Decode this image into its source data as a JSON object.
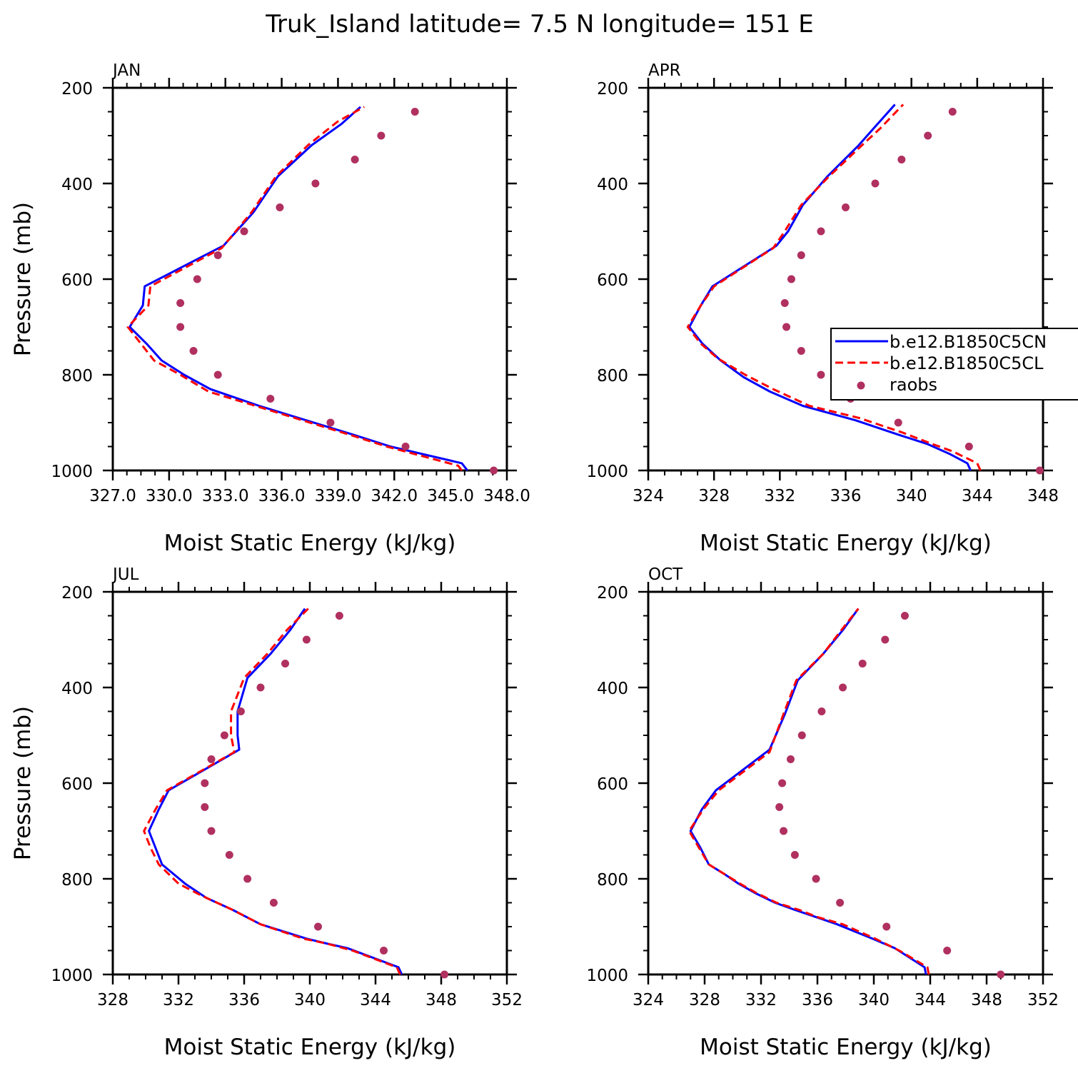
{
  "title": "Truk_Island  latitude= 7.5 N longitude= 151 E",
  "colors": {
    "model1": "#0000ff",
    "model2": "#ff0000",
    "raobs": "#b03060"
  },
  "legend": {
    "series": [
      {
        "name": "b.e12.B1850C5CN",
        "style": "solid"
      },
      {
        "name": "b.e12.B1850C5CL",
        "style": "dashed"
      },
      {
        "name": "raobs",
        "style": "dots"
      }
    ]
  },
  "chart_data": [
    {
      "type": "line",
      "panel_label": "JAN",
      "xlabel": "Moist Static Energy (kJ/kg)",
      "ylabel": "Pressure (mb)",
      "xlim": [
        327.0,
        348.0
      ],
      "ylim": [
        1000,
        200
      ],
      "xticks": [
        "327.0",
        "330.0",
        "333.0",
        "336.0",
        "339.0",
        "342.0",
        "345.0",
        "348.0"
      ],
      "yticks": [
        "200",
        "400",
        "600",
        "800",
        "1000"
      ],
      "series": [
        {
          "name": "b.e12.B1850C5CN",
          "points": [
            [
              345.9,
              1000
            ],
            [
              345.6,
              985
            ],
            [
              341.8,
              950
            ],
            [
              339.8,
              925
            ],
            [
              337.3,
              895
            ],
            [
              334.8,
              865
            ],
            [
              332.2,
              830
            ],
            [
              330.8,
              800
            ],
            [
              329.6,
              770
            ],
            [
              328.8,
              735
            ],
            [
              327.9,
              700
            ],
            [
              328.6,
              655
            ],
            [
              328.7,
              615
            ],
            [
              332.9,
              530
            ],
            [
              334.5,
              460
            ],
            [
              335.8,
              385
            ],
            [
              337.6,
              320
            ],
            [
              339.2,
              275
            ],
            [
              340.2,
              240
            ]
          ]
        },
        {
          "name": "b.e12.B1850C5CL",
          "points": [
            [
              345.6,
              1000
            ],
            [
              345.4,
              990
            ],
            [
              341.6,
              950
            ],
            [
              339.6,
              925
            ],
            [
              337.1,
              895
            ],
            [
              334.6,
              865
            ],
            [
              332.1,
              835
            ],
            [
              330.6,
              800
            ],
            [
              329.2,
              770
            ],
            [
              328.5,
              735
            ],
            [
              327.8,
              700
            ],
            [
              328.9,
              655
            ],
            [
              329.0,
              615
            ],
            [
              332.8,
              535
            ],
            [
              334.4,
              460
            ],
            [
              335.7,
              385
            ],
            [
              337.4,
              320
            ],
            [
              339.0,
              270
            ],
            [
              340.4,
              240
            ]
          ]
        },
        {
          "name": "raobs",
          "points": [
            [
              347.3,
              1000
            ],
            [
              342.6,
              950
            ],
            [
              338.6,
              900
            ],
            [
              335.4,
              850
            ],
            [
              332.6,
              800
            ],
            [
              331.3,
              750
            ],
            [
              330.6,
              700
            ],
            [
              330.6,
              650
            ],
            [
              331.5,
              600
            ],
            [
              332.6,
              550
            ],
            [
              334.0,
              500
            ],
            [
              335.9,
              450
            ],
            [
              337.8,
              400
            ],
            [
              339.9,
              350
            ],
            [
              341.3,
              300
            ],
            [
              343.1,
              250
            ]
          ]
        }
      ]
    },
    {
      "type": "line",
      "panel_label": "APR",
      "xlabel": "Moist Static Energy (kJ/kg)",
      "ylabel": "",
      "xlim": [
        324,
        348
      ],
      "ylim": [
        1000,
        200
      ],
      "xticks": [
        "324",
        "328",
        "332",
        "336",
        "340",
        "344",
        "348"
      ],
      "yticks": [
        "200",
        "400",
        "600",
        "800",
        "1000"
      ],
      "series": [
        {
          "name": "b.e12.B1850C5CN",
          "points": [
            [
              343.6,
              1000
            ],
            [
              343.4,
              985
            ],
            [
              342.3,
              965
            ],
            [
              341.0,
              945
            ],
            [
              339.2,
              925
            ],
            [
              336.6,
              895
            ],
            [
              333.4,
              865
            ],
            [
              331.4,
              835
            ],
            [
              329.8,
              805
            ],
            [
              328.4,
              770
            ],
            [
              327.3,
              735
            ],
            [
              326.5,
              700
            ],
            [
              327.2,
              655
            ],
            [
              327.9,
              615
            ],
            [
              331.8,
              530
            ],
            [
              332.5,
              500
            ],
            [
              333.4,
              445
            ],
            [
              334.9,
              385
            ],
            [
              336.8,
              320
            ],
            [
              337.7,
              285
            ],
            [
              339.0,
              235
            ]
          ]
        },
        {
          "name": "b.e12.B1850C5CL",
          "points": [
            [
              344.2,
              1000
            ],
            [
              344.0,
              985
            ],
            [
              342.5,
              960
            ],
            [
              341.3,
              945
            ],
            [
              339.4,
              920
            ],
            [
              336.8,
              890
            ],
            [
              333.8,
              865
            ],
            [
              331.6,
              830
            ],
            [
              329.9,
              800
            ],
            [
              328.2,
              765
            ],
            [
              327.2,
              735
            ],
            [
              326.4,
              700
            ],
            [
              327.2,
              655
            ],
            [
              328.0,
              615
            ],
            [
              331.6,
              535
            ],
            [
              332.3,
              500
            ],
            [
              333.3,
              445
            ],
            [
              335.0,
              385
            ],
            [
              337.0,
              320
            ],
            [
              338.1,
              285
            ],
            [
              339.5,
              235
            ]
          ]
        },
        {
          "name": "raobs",
          "points": [
            [
              347.8,
              1000
            ],
            [
              343.5,
              950
            ],
            [
              339.2,
              900
            ],
            [
              336.3,
              850
            ],
            [
              334.5,
              800
            ],
            [
              333.3,
              750
            ],
            [
              332.4,
              700
            ],
            [
              332.3,
              650
            ],
            [
              332.7,
              600
            ],
            [
              333.3,
              550
            ],
            [
              334.5,
              500
            ],
            [
              336.0,
              450
            ],
            [
              337.8,
              400
            ],
            [
              339.4,
              350
            ],
            [
              341.0,
              300
            ],
            [
              342.5,
              250
            ]
          ]
        }
      ]
    },
    {
      "type": "line",
      "panel_label": "JUL",
      "xlabel": "Moist Static Energy (kJ/kg)",
      "ylabel": "Pressure (mb)",
      "xlim": [
        328,
        352
      ],
      "ylim": [
        1000,
        200
      ],
      "xticks": [
        "328",
        "332",
        "336",
        "340",
        "344",
        "348",
        "352"
      ],
      "yticks": [
        "200",
        "400",
        "600",
        "800",
        "1000"
      ],
      "series": [
        {
          "name": "b.e12.B1850C5CN",
          "points": [
            [
              345.6,
              1000
            ],
            [
              345.4,
              985
            ],
            [
              342.3,
              945
            ],
            [
              341.0,
              935
            ],
            [
              339.8,
              925
            ],
            [
              337.0,
              895
            ],
            [
              335.3,
              865
            ],
            [
              333.7,
              840
            ],
            [
              332.4,
              810
            ],
            [
              331.0,
              770
            ],
            [
              330.6,
              735
            ],
            [
              330.2,
              700
            ],
            [
              330.8,
              655
            ],
            [
              331.4,
              615
            ],
            [
              335.7,
              530
            ],
            [
              335.6,
              500
            ],
            [
              335.6,
              450
            ],
            [
              336.2,
              380
            ],
            [
              337.6,
              330
            ],
            [
              338.8,
              280
            ],
            [
              339.7,
              235
            ]
          ]
        },
        {
          "name": "b.e12.B1850C5CL",
          "points": [
            [
              345.5,
              1000
            ],
            [
              345.3,
              985
            ],
            [
              342.6,
              950
            ],
            [
              341.0,
              935
            ],
            [
              339.6,
              925
            ],
            [
              337.0,
              895
            ],
            [
              335.3,
              865
            ],
            [
              333.4,
              835
            ],
            [
              332.0,
              810
            ],
            [
              330.8,
              770
            ],
            [
              330.3,
              735
            ],
            [
              329.9,
              700
            ],
            [
              330.6,
              655
            ],
            [
              331.3,
              615
            ],
            [
              335.4,
              535
            ],
            [
              335.2,
              500
            ],
            [
              335.2,
              450
            ],
            [
              336.0,
              380
            ],
            [
              337.4,
              330
            ],
            [
              338.6,
              280
            ],
            [
              339.9,
              235
            ]
          ]
        },
        {
          "name": "raobs",
          "points": [
            [
              348.2,
              1000
            ],
            [
              344.5,
              950
            ],
            [
              340.5,
              900
            ],
            [
              337.8,
              850
            ],
            [
              336.2,
              800
            ],
            [
              335.1,
              750
            ],
            [
              334.0,
              700
            ],
            [
              333.6,
              650
            ],
            [
              333.6,
              600
            ],
            [
              334.0,
              550
            ],
            [
              334.8,
              500
            ],
            [
              335.8,
              450
            ],
            [
              337.0,
              400
            ],
            [
              338.5,
              350
            ],
            [
              339.8,
              300
            ],
            [
              341.8,
              250
            ]
          ]
        }
      ]
    },
    {
      "type": "line",
      "panel_label": "OCT",
      "xlabel": "Moist Static Energy (kJ/kg)",
      "ylabel": "",
      "xlim": [
        324,
        352
      ],
      "ylim": [
        1000,
        200
      ],
      "xticks": [
        "324",
        "328",
        "332",
        "336",
        "340",
        "344",
        "348",
        "352"
      ],
      "yticks": [
        "200",
        "400",
        "600",
        "800",
        "1000"
      ],
      "series": [
        {
          "name": "b.e12.B1850C5CN",
          "points": [
            [
              343.7,
              1000
            ],
            [
              343.6,
              985
            ],
            [
              341.5,
              945
            ],
            [
              339.9,
              925
            ],
            [
              337.4,
              895
            ],
            [
              335.9,
              880
            ],
            [
              334.4,
              865
            ],
            [
              333.0,
              850
            ],
            [
              331.6,
              830
            ],
            [
              330.4,
              810
            ],
            [
              329.4,
              790
            ],
            [
              328.3,
              770
            ],
            [
              327.7,
              735
            ],
            [
              327.0,
              700
            ],
            [
              327.8,
              655
            ],
            [
              328.8,
              615
            ],
            [
              332.6,
              530
            ],
            [
              333.7,
              455
            ],
            [
              334.6,
              385
            ],
            [
              336.4,
              330
            ],
            [
              337.8,
              280
            ],
            [
              338.9,
              235
            ]
          ]
        },
        {
          "name": "b.e12.B1850C5CL",
          "points": [
            [
              343.9,
              1000
            ],
            [
              343.8,
              985
            ],
            [
              341.8,
              950
            ],
            [
              340.1,
              925
            ],
            [
              337.8,
              895
            ],
            [
              336.0,
              880
            ],
            [
              334.7,
              865
            ],
            [
              333.1,
              850
            ],
            [
              331.7,
              830
            ],
            [
              330.5,
              810
            ],
            [
              329.4,
              790
            ],
            [
              328.3,
              770
            ],
            [
              327.6,
              735
            ],
            [
              326.9,
              700
            ],
            [
              327.9,
              655
            ],
            [
              329.0,
              615
            ],
            [
              332.6,
              535
            ],
            [
              333.6,
              455
            ],
            [
              334.5,
              385
            ],
            [
              336.4,
              330
            ],
            [
              337.7,
              280
            ],
            [
              338.9,
              235
            ]
          ]
        },
        {
          "name": "raobs",
          "points": [
            [
              349.0,
              1000
            ],
            [
              345.2,
              950
            ],
            [
              340.9,
              900
            ],
            [
              337.6,
              850
            ],
            [
              335.9,
              800
            ],
            [
              334.4,
              750
            ],
            [
              333.6,
              700
            ],
            [
              333.3,
              650
            ],
            [
              333.5,
              600
            ],
            [
              334.1,
              550
            ],
            [
              334.9,
              500
            ],
            [
              336.3,
              450
            ],
            [
              337.8,
              400
            ],
            [
              339.2,
              350
            ],
            [
              340.8,
              300
            ],
            [
              342.2,
              250
            ]
          ]
        }
      ]
    }
  ]
}
